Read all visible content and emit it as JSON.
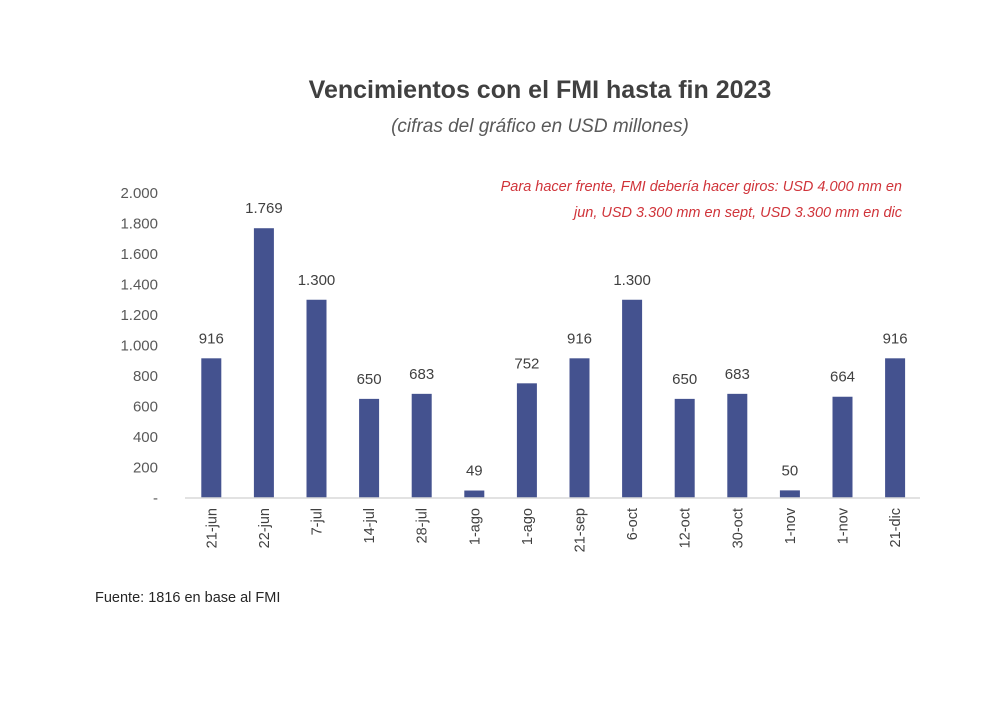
{
  "chart_data": {
    "type": "bar",
    "title": "Vencimientos con el FMI hasta fin 2023",
    "subtitle": "(cifras del gráfico en USD millones)",
    "annotation": "Para hacer frente, FMI debería hacer giros: USD 4.000 mm en jun, USD 3.300 mm en sept, USD 3.300 mm en dic",
    "categories": [
      "21-jun",
      "22-jun",
      "7-jul",
      "14-jul",
      "28-jul",
      "1-ago",
      "1-ago",
      "21-sep",
      "6-oct",
      "12-oct",
      "30-oct",
      "1-nov",
      "1-nov",
      "21-dic"
    ],
    "values": [
      916,
      1769,
      1300,
      650,
      683,
      49,
      752,
      916,
      1300,
      650,
      683,
      50,
      664,
      916
    ],
    "value_labels": [
      "916",
      "1.769",
      "1.300",
      "650",
      "683",
      "49",
      "752",
      "916",
      "1.300",
      "650",
      "683",
      "50",
      "664",
      "916"
    ],
    "ylim": [
      0,
      2000
    ],
    "yticks": [
      0,
      200,
      400,
      600,
      800,
      1000,
      1200,
      1400,
      1600,
      1800,
      2000
    ],
    "ytick_labels": [
      "-",
      "200",
      "400",
      "600",
      "800",
      "1.000",
      "1.200",
      "1.400",
      "1.600",
      "1.800",
      "2.000"
    ],
    "bar_color": "#44528f",
    "grid": false,
    "xlabel": "",
    "ylabel": ""
  },
  "source": "Fuente: 1816 en base al FMI"
}
